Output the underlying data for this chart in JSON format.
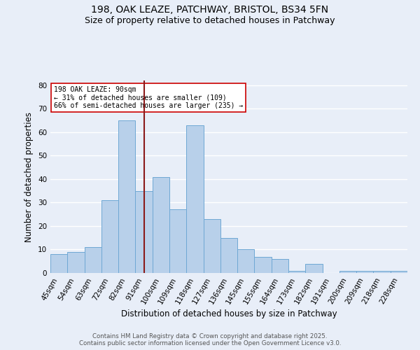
{
  "title_line1": "198, OAK LEAZE, PATCHWAY, BRISTOL, BS34 5FN",
  "title_line2": "Size of property relative to detached houses in Patchway",
  "xlabel": "Distribution of detached houses by size in Patchway",
  "ylabel": "Number of detached properties",
  "categories": [
    "45sqm",
    "54sqm",
    "63sqm",
    "72sqm",
    "82sqm",
    "91sqm",
    "100sqm",
    "109sqm",
    "118sqm",
    "127sqm",
    "136sqm",
    "145sqm",
    "155sqm",
    "164sqm",
    "173sqm",
    "182sqm",
    "191sqm",
    "200sqm",
    "209sqm",
    "218sqm",
    "228sqm"
  ],
  "values": [
    8,
    9,
    11,
    31,
    65,
    35,
    41,
    27,
    63,
    23,
    15,
    10,
    7,
    6,
    1,
    4,
    0,
    1,
    1,
    1,
    1
  ],
  "bar_color": "#b8d0ea",
  "bar_edge_color": "#6fa8d4",
  "vline_x": 5,
  "vline_color": "#8b1a1a",
  "annotation_text": "198 OAK LEAZE: 90sqm\n← 31% of detached houses are smaller (109)\n66% of semi-detached houses are larger (235) →",
  "annotation_box_color": "white",
  "annotation_box_edge_color": "#cc0000",
  "ylim": [
    0,
    82
  ],
  "yticks": [
    0,
    10,
    20,
    30,
    40,
    50,
    60,
    70,
    80
  ],
  "background_color": "#e8eef8",
  "grid_color": "white",
  "title_fontsize": 10,
  "subtitle_fontsize": 9,
  "label_fontsize": 8.5,
  "tick_fontsize": 7.5,
  "annotation_fontsize": 7,
  "footer_text": "Contains HM Land Registry data © Crown copyright and database right 2025.\nContains public sector information licensed under the Open Government Licence v3.0."
}
